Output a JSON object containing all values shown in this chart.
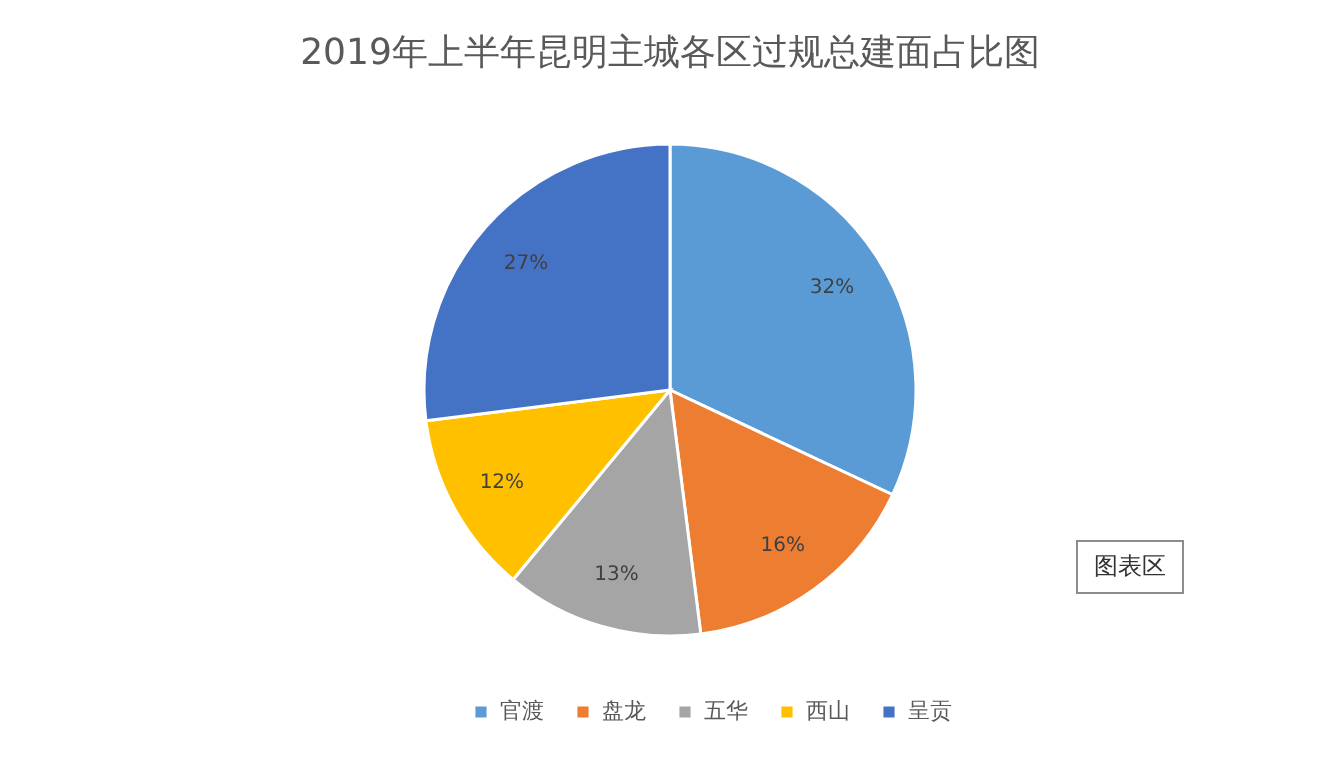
{
  "chart_data": {
    "type": "pie",
    "title": "2019年上半年昆明主城各区过规总建面占比图",
    "categories": [
      "官渡",
      "盘龙",
      "五华",
      "西山",
      "呈贡"
    ],
    "values": [
      32,
      16,
      13,
      12,
      27
    ],
    "colors": [
      "#5b9bd5",
      "#ed7d31",
      "#a5a5a5",
      "#ffc000",
      "#4472c4"
    ],
    "value_labels": [
      "32%",
      "16%",
      "13%",
      "12%",
      "27%"
    ],
    "legend": "bottom",
    "annotations": [
      "图表区"
    ]
  }
}
